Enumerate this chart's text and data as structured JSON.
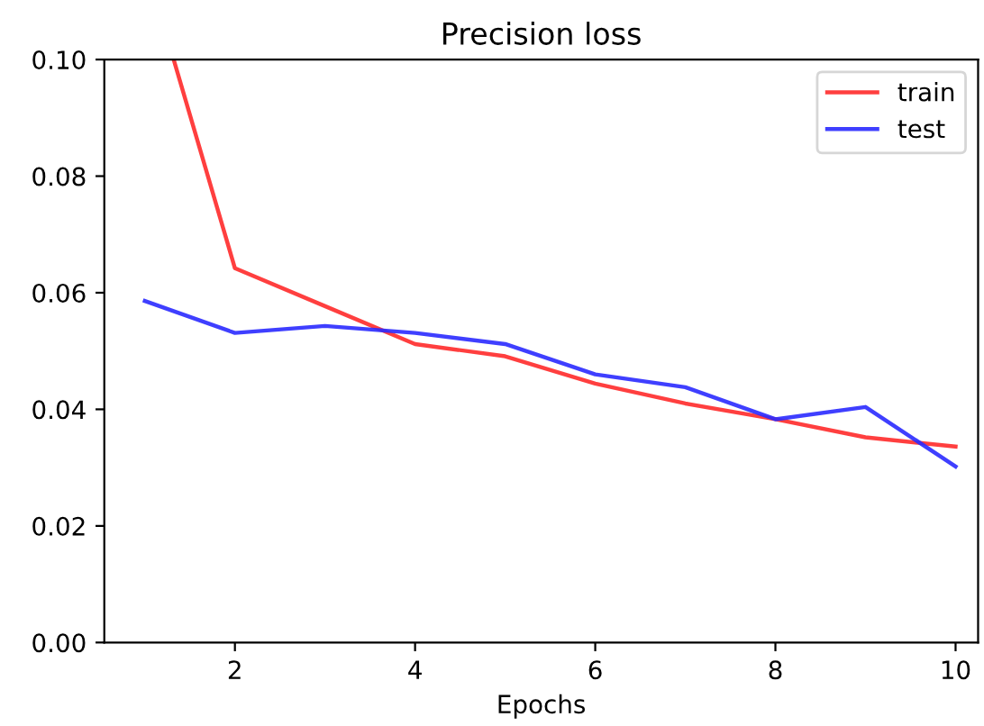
{
  "chart_data": {
    "type": "line",
    "title": "Precision loss",
    "xlabel": "Epochs",
    "x": [
      1,
      2,
      3,
      4,
      5,
      6,
      7,
      8,
      9,
      10
    ],
    "series": [
      {
        "name": "train",
        "color": "#ff2a2a",
        "x": [
          1.32,
          2,
          3,
          4,
          5,
          6,
          7,
          8,
          9,
          10
        ],
        "values": [
          0.1,
          0.0642,
          0.0577,
          0.0512,
          0.0491,
          0.0444,
          0.041,
          0.0383,
          0.0352,
          0.0336
        ]
      },
      {
        "name": "test",
        "color": "#2a2aff",
        "values": [
          0.0586,
          0.0531,
          0.0543,
          0.0531,
          0.0512,
          0.046,
          0.0438,
          0.0383,
          0.0404,
          0.0302
        ]
      }
    ],
    "xlim": [
      0.55,
      10.25
    ],
    "ylim": [
      0,
      0.1
    ],
    "xticks": [
      2,
      4,
      6,
      8,
      10
    ],
    "yticks": [
      {
        "value": 0,
        "label": "0.00"
      },
      {
        "value": 0.02,
        "label": "0.02"
      },
      {
        "value": 0.04,
        "label": "0.04"
      },
      {
        "value": 0.06,
        "label": "0.06"
      },
      {
        "value": 0.08,
        "label": "0.08"
      },
      {
        "value": 0.1,
        "label": "0.10"
      }
    ],
    "grid": false,
    "legend": "top right",
    "marker": "none",
    "line_style": "solid"
  }
}
